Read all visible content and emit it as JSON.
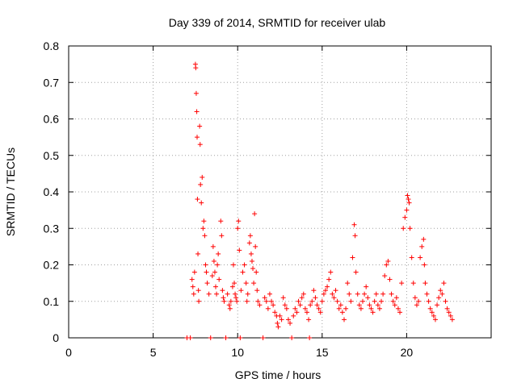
{
  "chart_data": {
    "type": "scatter",
    "title": "Day 339 of 2014, SRMTID for receiver ulab",
    "xlabel": "GPS time / hours",
    "ylabel": "SRMTID / TECUs",
    "xlim": [
      0,
      25
    ],
    "ylim": [
      0,
      0.8
    ],
    "xticks": [
      0,
      5,
      10,
      15,
      20
    ],
    "xtick_labels": [
      "0",
      "5",
      "10",
      "15",
      "20"
    ],
    "yticks": [
      0,
      0.1,
      0.2,
      0.3,
      0.4,
      0.5,
      0.6,
      0.7,
      0.8
    ],
    "ytick_labels": [
      "0",
      "0.1",
      "0.2",
      "0.3",
      "0.4",
      "0.5",
      "0.6",
      "0.7",
      "0.8"
    ],
    "grid": true,
    "marker": "+",
    "color": "#ff0000",
    "series": [
      {
        "name": "SRMTID",
        "points": [
          [
            7.0,
            0.0
          ],
          [
            7.2,
            0.0
          ],
          [
            7.3,
            0.16
          ],
          [
            7.35,
            0.14
          ],
          [
            7.4,
            0.12
          ],
          [
            7.45,
            0.18
          ],
          [
            7.5,
            0.75
          ],
          [
            7.52,
            0.74
          ],
          [
            7.55,
            0.67
          ],
          [
            7.58,
            0.62
          ],
          [
            7.6,
            0.55
          ],
          [
            7.62,
            0.38
          ],
          [
            7.65,
            0.23
          ],
          [
            7.68,
            0.13
          ],
          [
            7.7,
            0.1
          ],
          [
            7.75,
            0.58
          ],
          [
            7.78,
            0.53
          ],
          [
            7.8,
            0.42
          ],
          [
            7.85,
            0.37
          ],
          [
            7.9,
            0.44
          ],
          [
            7.95,
            0.3
          ],
          [
            8.0,
            0.32
          ],
          [
            8.05,
            0.28
          ],
          [
            8.1,
            0.2
          ],
          [
            8.15,
            0.18
          ],
          [
            8.2,
            0.15
          ],
          [
            8.3,
            0.12
          ],
          [
            8.4,
            0.0
          ],
          [
            8.5,
            0.17
          ],
          [
            8.55,
            0.25
          ],
          [
            8.6,
            0.21
          ],
          [
            8.65,
            0.18
          ],
          [
            8.7,
            0.14
          ],
          [
            8.75,
            0.12
          ],
          [
            8.8,
            0.2
          ],
          [
            8.85,
            0.23
          ],
          [
            8.9,
            0.16
          ],
          [
            9.0,
            0.32
          ],
          [
            9.05,
            0.28
          ],
          [
            9.1,
            0.13
          ],
          [
            9.15,
            0.11
          ],
          [
            9.2,
            0.1
          ],
          [
            9.3,
            0.0
          ],
          [
            9.4,
            0.12
          ],
          [
            9.5,
            0.09
          ],
          [
            9.55,
            0.08
          ],
          [
            9.6,
            0.1
          ],
          [
            9.7,
            0.14
          ],
          [
            9.75,
            0.2
          ],
          [
            9.8,
            0.15
          ],
          [
            9.85,
            0.12
          ],
          [
            9.9,
            0.11
          ],
          [
            9.95,
            0.1
          ],
          [
            10.0,
            0.3
          ],
          [
            10.05,
            0.32
          ],
          [
            10.1,
            0.24
          ],
          [
            10.15,
            0.0
          ],
          [
            10.2,
            0.13
          ],
          [
            10.3,
            0.18
          ],
          [
            10.4,
            0.2
          ],
          [
            10.5,
            0.15
          ],
          [
            10.55,
            0.1
          ],
          [
            10.6,
            0.12
          ],
          [
            10.7,
            0.26
          ],
          [
            10.75,
            0.28
          ],
          [
            10.8,
            0.23
          ],
          [
            10.85,
            0.21
          ],
          [
            10.9,
            0.19
          ],
          [
            10.95,
            0.15
          ],
          [
            11.0,
            0.34
          ],
          [
            11.05,
            0.25
          ],
          [
            11.1,
            0.18
          ],
          [
            11.15,
            0.13
          ],
          [
            11.2,
            0.1
          ],
          [
            11.3,
            0.09
          ],
          [
            11.5,
            0.0
          ],
          [
            11.6,
            0.11
          ],
          [
            11.7,
            0.1
          ],
          [
            11.8,
            0.08
          ],
          [
            11.9,
            0.12
          ],
          [
            12.0,
            0.1
          ],
          [
            12.1,
            0.09
          ],
          [
            12.2,
            0.07
          ],
          [
            12.3,
            0.06
          ],
          [
            12.35,
            0.04
          ],
          [
            12.4,
            0.03
          ],
          [
            12.5,
            0.06
          ],
          [
            12.6,
            0.05
          ],
          [
            12.7,
            0.11
          ],
          [
            12.8,
            0.09
          ],
          [
            12.9,
            0.08
          ],
          [
            13.0,
            0.05
          ],
          [
            13.1,
            0.04
          ],
          [
            13.2,
            0.0
          ],
          [
            13.3,
            0.06
          ],
          [
            13.4,
            0.08
          ],
          [
            13.5,
            0.07
          ],
          [
            13.6,
            0.1
          ],
          [
            13.7,
            0.09
          ],
          [
            13.8,
            0.11
          ],
          [
            13.9,
            0.12
          ],
          [
            14.0,
            0.08
          ],
          [
            14.1,
            0.07
          ],
          [
            14.2,
            0.05
          ],
          [
            14.25,
            0.0
          ],
          [
            14.3,
            0.09
          ],
          [
            14.4,
            0.1
          ],
          [
            14.5,
            0.13
          ],
          [
            14.6,
            0.11
          ],
          [
            14.7,
            0.09
          ],
          [
            14.8,
            0.08
          ],
          [
            14.9,
            0.07
          ],
          [
            15.0,
            0.1
          ],
          [
            15.1,
            0.12
          ],
          [
            15.2,
            0.13
          ],
          [
            15.3,
            0.14
          ],
          [
            15.4,
            0.16
          ],
          [
            15.5,
            0.18
          ],
          [
            15.6,
            0.12
          ],
          [
            15.7,
            0.11
          ],
          [
            15.8,
            0.13
          ],
          [
            15.9,
            0.1
          ],
          [
            16.0,
            0.08
          ],
          [
            16.1,
            0.09
          ],
          [
            16.2,
            0.07
          ],
          [
            16.3,
            0.05
          ],
          [
            16.4,
            0.08
          ],
          [
            16.5,
            0.15
          ],
          [
            16.6,
            0.12
          ],
          [
            16.7,
            0.1
          ],
          [
            16.8,
            0.22
          ],
          [
            16.9,
            0.31
          ],
          [
            16.95,
            0.28
          ],
          [
            17.0,
            0.18
          ],
          [
            17.1,
            0.12
          ],
          [
            17.2,
            0.09
          ],
          [
            17.3,
            0.08
          ],
          [
            17.4,
            0.1
          ],
          [
            17.5,
            0.12
          ],
          [
            17.6,
            0.14
          ],
          [
            17.7,
            0.11
          ],
          [
            17.8,
            0.09
          ],
          [
            17.9,
            0.08
          ],
          [
            18.0,
            0.07
          ],
          [
            18.1,
            0.1
          ],
          [
            18.2,
            0.12
          ],
          [
            18.3,
            0.09
          ],
          [
            18.4,
            0.08
          ],
          [
            18.5,
            0.1
          ],
          [
            18.6,
            0.12
          ],
          [
            18.7,
            0.17
          ],
          [
            18.8,
            0.2
          ],
          [
            18.9,
            0.21
          ],
          [
            19.0,
            0.16
          ],
          [
            19.1,
            0.12
          ],
          [
            19.2,
            0.1
          ],
          [
            19.3,
            0.09
          ],
          [
            19.4,
            0.11
          ],
          [
            19.5,
            0.08
          ],
          [
            19.6,
            0.07
          ],
          [
            19.7,
            0.15
          ],
          [
            19.8,
            0.3
          ],
          [
            19.9,
            0.33
          ],
          [
            20.0,
            0.35
          ],
          [
            20.05,
            0.39
          ],
          [
            20.1,
            0.38
          ],
          [
            20.15,
            0.37
          ],
          [
            20.2,
            0.3
          ],
          [
            20.3,
            0.22
          ],
          [
            20.4,
            0.15
          ],
          [
            20.5,
            0.11
          ],
          [
            20.6,
            0.09
          ],
          [
            20.7,
            0.1
          ],
          [
            20.8,
            0.22
          ],
          [
            20.9,
            0.25
          ],
          [
            21.0,
            0.27
          ],
          [
            21.05,
            0.2
          ],
          [
            21.1,
            0.15
          ],
          [
            21.2,
            0.12
          ],
          [
            21.3,
            0.1
          ],
          [
            21.4,
            0.08
          ],
          [
            21.5,
            0.07
          ],
          [
            21.6,
            0.06
          ],
          [
            21.7,
            0.05
          ],
          [
            21.8,
            0.09
          ],
          [
            21.9,
            0.11
          ],
          [
            22.0,
            0.13
          ],
          [
            22.1,
            0.12
          ],
          [
            22.2,
            0.15
          ],
          [
            22.3,
            0.1
          ],
          [
            22.4,
            0.08
          ],
          [
            22.5,
            0.07
          ],
          [
            22.6,
            0.06
          ],
          [
            22.7,
            0.05
          ]
        ]
      }
    ]
  }
}
